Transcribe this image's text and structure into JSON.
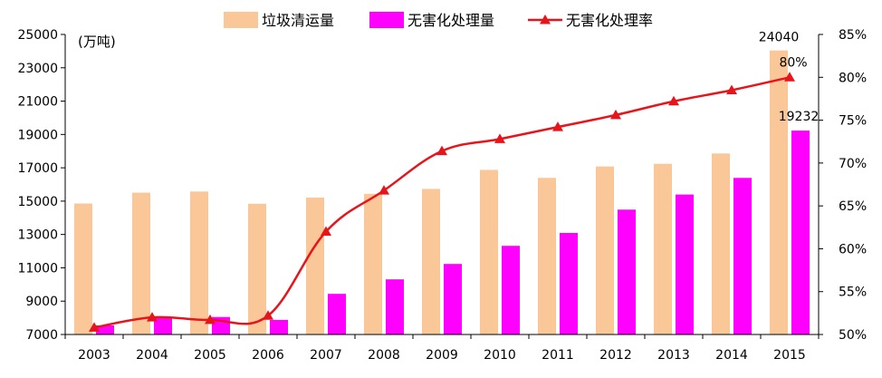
{
  "chart_data": {
    "type": "bar",
    "categories": [
      "2003",
      "2004",
      "2005",
      "2006",
      "2007",
      "2008",
      "2009",
      "2010",
      "2011",
      "2012",
      "2013",
      "2014",
      "2015"
    ],
    "series": [
      {
        "name": "垃圾清运量",
        "kind": "bar",
        "axis": "left",
        "color": "#FAC898",
        "values": [
          14857,
          15509,
          15577,
          14841,
          15215,
          15438,
          15734,
          16875,
          16395,
          17081,
          17239,
          17860,
          24040
        ]
      },
      {
        "name": "无害化处理量",
        "kind": "bar",
        "axis": "left",
        "color": "#FF00FF",
        "values": [
          7545,
          8051,
          8051,
          7873,
          9438,
          10307,
          11232,
          12318,
          13090,
          14490,
          15394,
          16394,
          19232
        ]
      },
      {
        "name": "无害化处理率",
        "kind": "line",
        "axis": "right",
        "color": "#E8141B",
        "values": [
          50.8,
          52.0,
          51.7,
          52.2,
          62.0,
          66.8,
          71.4,
          72.8,
          74.2,
          75.6,
          77.2,
          78.5,
          80.0
        ]
      }
    ],
    "value_labels": [
      "24040",
      "19232",
      "80%"
    ],
    "ylabel_left": "(万吨)",
    "y_left": {
      "ylim": [
        7000,
        25000
      ],
      "ticks": [
        "7000",
        "9000",
        "11000",
        "13000",
        "15000",
        "17000",
        "19000",
        "21000",
        "23000",
        "25000"
      ]
    },
    "y_right": {
      "ylim": [
        50,
        85
      ],
      "ticks": [
        "50%",
        "55%",
        "60%",
        "65%",
        "70%",
        "75%",
        "80%",
        "85%"
      ]
    },
    "grid": false,
    "legend_position": "top"
  }
}
